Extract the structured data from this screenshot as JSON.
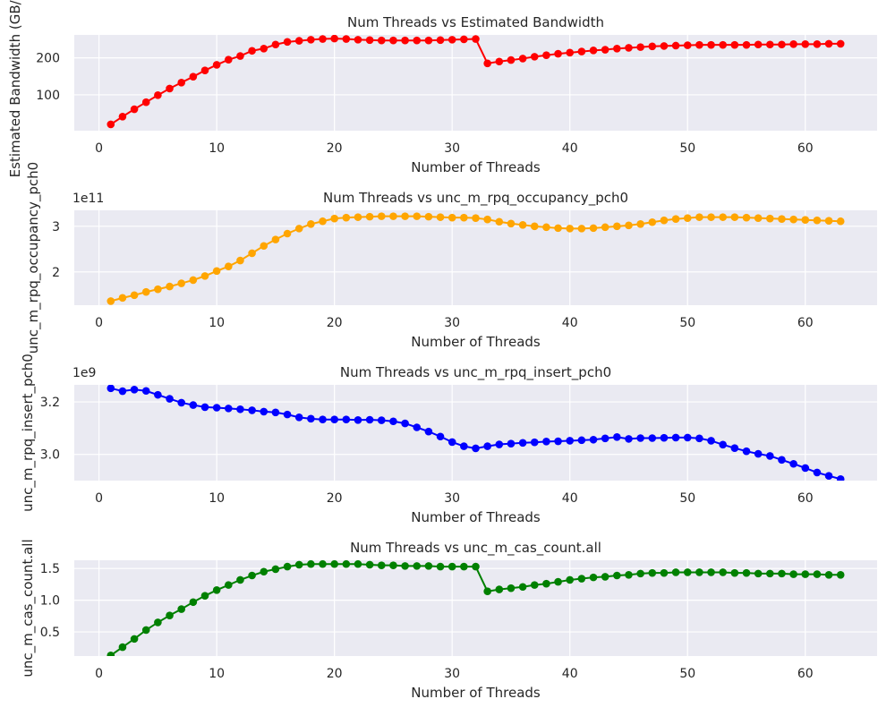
{
  "colors": {
    "panel_bg": "#eaeaf2",
    "grid": "#ffffff",
    "text": "#262626"
  },
  "chart_data": [
    {
      "type": "line",
      "title": "Num Threads vs Estimated Bandwidth",
      "xlabel": "Number of Threads",
      "ylabel": "Estimated Bandwidth (GB/s)",
      "offset_label": "",
      "color": "#ff0000",
      "marker": "circle",
      "grid": true,
      "xlim": [
        -2.1,
        66.1
      ],
      "ylim": [
        3,
        262
      ],
      "xticks": [
        0,
        10,
        20,
        30,
        40,
        50,
        60
      ],
      "yticks": [
        100,
        200
      ],
      "ytick_labels": [
        "100",
        "200"
      ],
      "x": [
        1,
        2,
        3,
        4,
        5,
        6,
        7,
        8,
        9,
        10,
        11,
        12,
        13,
        14,
        15,
        16,
        17,
        18,
        19,
        20,
        21,
        22,
        23,
        24,
        25,
        26,
        27,
        28,
        29,
        30,
        31,
        32,
        33,
        34,
        35,
        36,
        37,
        38,
        39,
        40,
        41,
        42,
        43,
        44,
        45,
        46,
        47,
        48,
        49,
        50,
        51,
        52,
        53,
        54,
        55,
        56,
        57,
        58,
        59,
        60,
        61,
        62,
        63
      ],
      "y": [
        20,
        41,
        61,
        80,
        99,
        117,
        133,
        149,
        166,
        181,
        195,
        205,
        219,
        225,
        236,
        243,
        246,
        249,
        251,
        252,
        251,
        249,
        248,
        247,
        247,
        247,
        247,
        247,
        248,
        249,
        250,
        251,
        185,
        190,
        194,
        198,
        203,
        207,
        211,
        214,
        217,
        220,
        222,
        225,
        227,
        229,
        231,
        232,
        233,
        234,
        235,
        235,
        235,
        235,
        235,
        236,
        236,
        236,
        237,
        237,
        237,
        238,
        238
      ]
    },
    {
      "type": "line",
      "title": "Num Threads vs unc_m_rpq_occupancy_pch0",
      "xlabel": "Number of Threads",
      "ylabel": "unc_m_rpq_occupancy_pch0",
      "offset_label": "1e11",
      "color": "#ffa500",
      "marker": "circle",
      "grid": true,
      "xlim": [
        -2.1,
        66.1
      ],
      "ylim": [
        1.27,
        3.35
      ],
      "xticks": [
        0,
        10,
        20,
        30,
        40,
        50,
        60
      ],
      "yticks": [
        2,
        3
      ],
      "ytick_labels": [
        "2",
        "3"
      ],
      "x": [
        1,
        2,
        3,
        4,
        5,
        6,
        7,
        8,
        9,
        10,
        11,
        12,
        13,
        14,
        15,
        16,
        17,
        18,
        19,
        20,
        21,
        22,
        23,
        24,
        25,
        26,
        27,
        28,
        29,
        30,
        31,
        32,
        33,
        34,
        35,
        36,
        37,
        38,
        39,
        40,
        41,
        42,
        43,
        44,
        45,
        46,
        47,
        48,
        49,
        50,
        51,
        52,
        53,
        54,
        55,
        56,
        57,
        58,
        59,
        60,
        61,
        62,
        63
      ],
      "y": [
        1.36,
        1.43,
        1.49,
        1.56,
        1.62,
        1.68,
        1.75,
        1.82,
        1.91,
        2.02,
        2.12,
        2.25,
        2.41,
        2.57,
        2.71,
        2.84,
        2.95,
        3.05,
        3.11,
        3.17,
        3.19,
        3.2,
        3.21,
        3.22,
        3.22,
        3.22,
        3.22,
        3.21,
        3.2,
        3.19,
        3.19,
        3.18,
        3.15,
        3.1,
        3.06,
        3.03,
        3.0,
        2.98,
        2.96,
        2.95,
        2.95,
        2.96,
        2.98,
        3.0,
        3.02,
        3.05,
        3.09,
        3.13,
        3.16,
        3.18,
        3.2,
        3.2,
        3.2,
        3.2,
        3.19,
        3.18,
        3.17,
        3.16,
        3.15,
        3.14,
        3.13,
        3.12,
        3.11
      ]
    },
    {
      "type": "line",
      "title": "Num Threads vs unc_m_rpq_insert_pch0",
      "xlabel": "Number of Threads",
      "ylabel": "unc_m_rpq_insert_pch0",
      "offset_label": "1e9",
      "color": "#0000ff",
      "marker": "circle",
      "grid": true,
      "xlim": [
        -2.1,
        66.1
      ],
      "ylim": [
        2.9,
        3.265
      ],
      "xticks": [
        0,
        10,
        20,
        30,
        40,
        50,
        60
      ],
      "yticks": [
        3.0,
        3.2
      ],
      "ytick_labels": [
        "3.0",
        "3.2"
      ],
      "x": [
        1,
        2,
        3,
        4,
        5,
        6,
        7,
        8,
        9,
        10,
        11,
        12,
        13,
        14,
        15,
        16,
        17,
        18,
        19,
        20,
        21,
        22,
        23,
        24,
        25,
        26,
        27,
        28,
        29,
        30,
        31,
        32,
        33,
        34,
        35,
        36,
        37,
        38,
        39,
        40,
        41,
        42,
        43,
        44,
        45,
        46,
        47,
        48,
        49,
        50,
        51,
        52,
        53,
        54,
        55,
        56,
        57,
        58,
        59,
        60,
        61,
        62,
        63
      ],
      "y": [
        3.252,
        3.241,
        3.247,
        3.242,
        3.227,
        3.212,
        3.197,
        3.188,
        3.18,
        3.178,
        3.175,
        3.172,
        3.168,
        3.163,
        3.16,
        3.152,
        3.141,
        3.136,
        3.133,
        3.133,
        3.133,
        3.131,
        3.132,
        3.13,
        3.126,
        3.118,
        3.103,
        3.087,
        3.068,
        3.047,
        3.031,
        3.023,
        3.031,
        3.038,
        3.041,
        3.044,
        3.046,
        3.049,
        3.05,
        3.052,
        3.054,
        3.056,
        3.061,
        3.066,
        3.059,
        3.062,
        3.062,
        3.063,
        3.064,
        3.064,
        3.061,
        3.052,
        3.037,
        3.024,
        3.012,
        3.002,
        2.994,
        2.979,
        2.964,
        2.948,
        2.931,
        2.918,
        2.906
      ]
    },
    {
      "type": "line",
      "title": "Num Threads vs unc_m_cas_count.all",
      "xlabel": "Number of Threads",
      "ylabel": "unc_m_cas_count.all",
      "offset_label": "",
      "color": "#008000",
      "marker": "circle",
      "grid": true,
      "xlim": [
        -2.1,
        66.1
      ],
      "ylim": [
        0.12,
        1.63
      ],
      "xticks": [
        0,
        10,
        20,
        30,
        40,
        50,
        60
      ],
      "yticks": [
        0.5,
        1.0,
        1.5
      ],
      "ytick_labels": [
        "0.5",
        "1.0",
        "1.5"
      ],
      "x": [
        1,
        2,
        3,
        4,
        5,
        6,
        7,
        8,
        9,
        10,
        11,
        12,
        13,
        14,
        15,
        16,
        17,
        18,
        19,
        20,
        21,
        22,
        23,
        24,
        25,
        26,
        27,
        28,
        29,
        30,
        31,
        32,
        33,
        34,
        35,
        36,
        37,
        38,
        39,
        40,
        41,
        42,
        43,
        44,
        45,
        46,
        47,
        48,
        49,
        50,
        51,
        52,
        53,
        54,
        55,
        56,
        57,
        58,
        59,
        60,
        61,
        62,
        63
      ],
      "y": [
        0.13,
        0.26,
        0.39,
        0.53,
        0.65,
        0.76,
        0.86,
        0.97,
        1.07,
        1.16,
        1.24,
        1.32,
        1.39,
        1.45,
        1.49,
        1.53,
        1.56,
        1.57,
        1.57,
        1.57,
        1.57,
        1.57,
        1.56,
        1.55,
        1.55,
        1.54,
        1.54,
        1.54,
        1.53,
        1.53,
        1.53,
        1.53,
        1.14,
        1.17,
        1.19,
        1.21,
        1.24,
        1.26,
        1.29,
        1.32,
        1.34,
        1.36,
        1.37,
        1.39,
        1.4,
        1.42,
        1.43,
        1.43,
        1.44,
        1.44,
        1.44,
        1.44,
        1.44,
        1.43,
        1.43,
        1.42,
        1.42,
        1.42,
        1.41,
        1.41,
        1.41,
        1.4,
        1.4
      ]
    }
  ]
}
